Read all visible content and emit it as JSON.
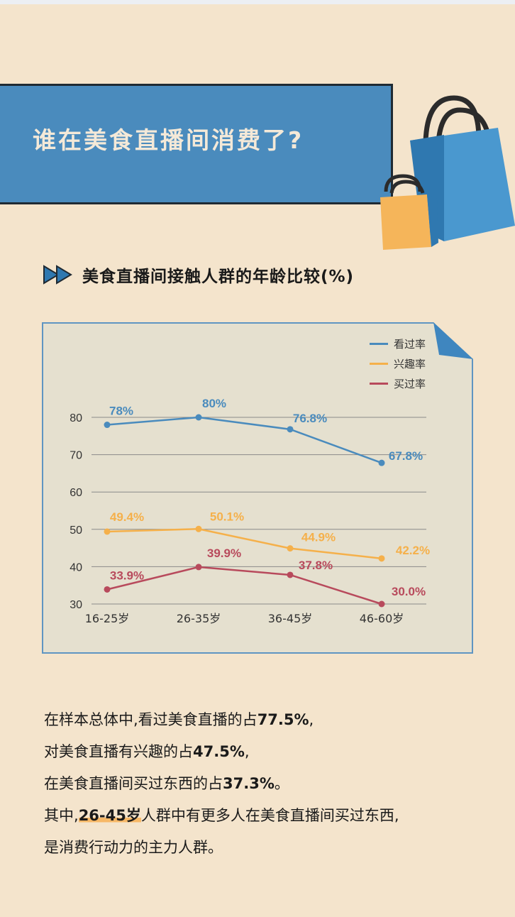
{
  "page": {
    "title": "谁在美食直播间消费了?",
    "subtitle": "美食直播间接触人群的年龄比较(%)",
    "body": {
      "line1_pre": "在样本总体中,看过美食直播的占",
      "line1_val": "77.5%",
      "line1_post": ",",
      "line2_pre": "对美食直播有兴趣的占",
      "line2_val": "47.5%",
      "line2_post": ",",
      "line3_pre": "在美食直播间买过东西的占",
      "line3_val": "37.3%",
      "line3_post": "。",
      "line4_pre": "其中,",
      "line4_hl": "26-45岁",
      "line4_post": "人群中有更多人在美食直播间买过东西,",
      "line5": "是消费行动力的主力人群。"
    }
  },
  "colors": {
    "background": "#f4e4cc",
    "banner": "#4a8bbd",
    "chart_bg": "#e5e0cf",
    "highlight": "#f7b867"
  },
  "icons": [
    "double-arrow-icon",
    "shopping-bag-icon",
    "page-curl-icon"
  ],
  "chart_data": {
    "type": "line",
    "categories": [
      "16-25岁",
      "26-35岁",
      "36-45岁",
      "46-60岁"
    ],
    "ylim": [
      30,
      80
    ],
    "yticks": [
      30,
      40,
      50,
      60,
      70,
      80
    ],
    "grid": true,
    "legend_position": "top-right",
    "series": [
      {
        "name": "看过率",
        "values": [
          78,
          80,
          76.8,
          67.8
        ],
        "labels": [
          "78%",
          "80%",
          "76.8%",
          "67.8%"
        ],
        "color": "#4a8bbd"
      },
      {
        "name": "兴趣率",
        "values": [
          49.4,
          50.1,
          44.9,
          42.2
        ],
        "labels": [
          "49.4%",
          "50.1%",
          "44.9%",
          "42.2%"
        ],
        "color": "#f5b04a"
      },
      {
        "name": "买过率",
        "values": [
          33.9,
          39.9,
          37.8,
          30.0
        ],
        "labels": [
          "33.9%",
          "39.9%",
          "37.8%",
          "30.0%"
        ],
        "color": "#b84a5c"
      }
    ]
  }
}
